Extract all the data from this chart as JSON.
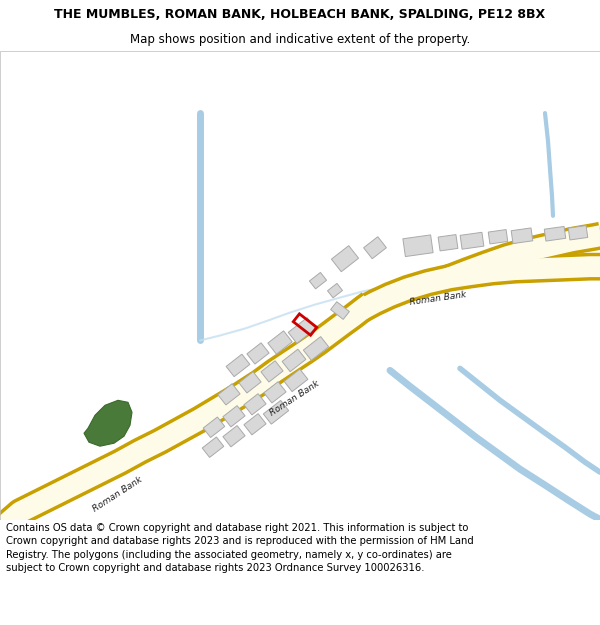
{
  "title_line1": "THE MUMBLES, ROMAN BANK, HOLBEACH BANK, SPALDING, PE12 8BX",
  "title_line2": "Map shows position and indicative extent of the property.",
  "footer_text": "Contains OS data © Crown copyright and database right 2021. This information is subject to Crown copyright and database rights 2023 and is reproduced with the permission of HM Land Registry. The polygons (including the associated geometry, namely x, y co-ordinates) are subject to Crown copyright and database rights 2023 Ordnance Survey 100026316.",
  "map_bg": "#f5f5fa",
  "road_fill": "#fefce8",
  "road_edge": "#c8a000",
  "water_color": "#a8cce4",
  "building_fill": "#d8d8d8",
  "building_edge": "#aaaaaa",
  "green_fill": "#4a7a3a",
  "red_outline": "#cc0000",
  "title_fontsize": 9,
  "subtitle_fontsize": 8.5,
  "footer_fontsize": 7.2
}
